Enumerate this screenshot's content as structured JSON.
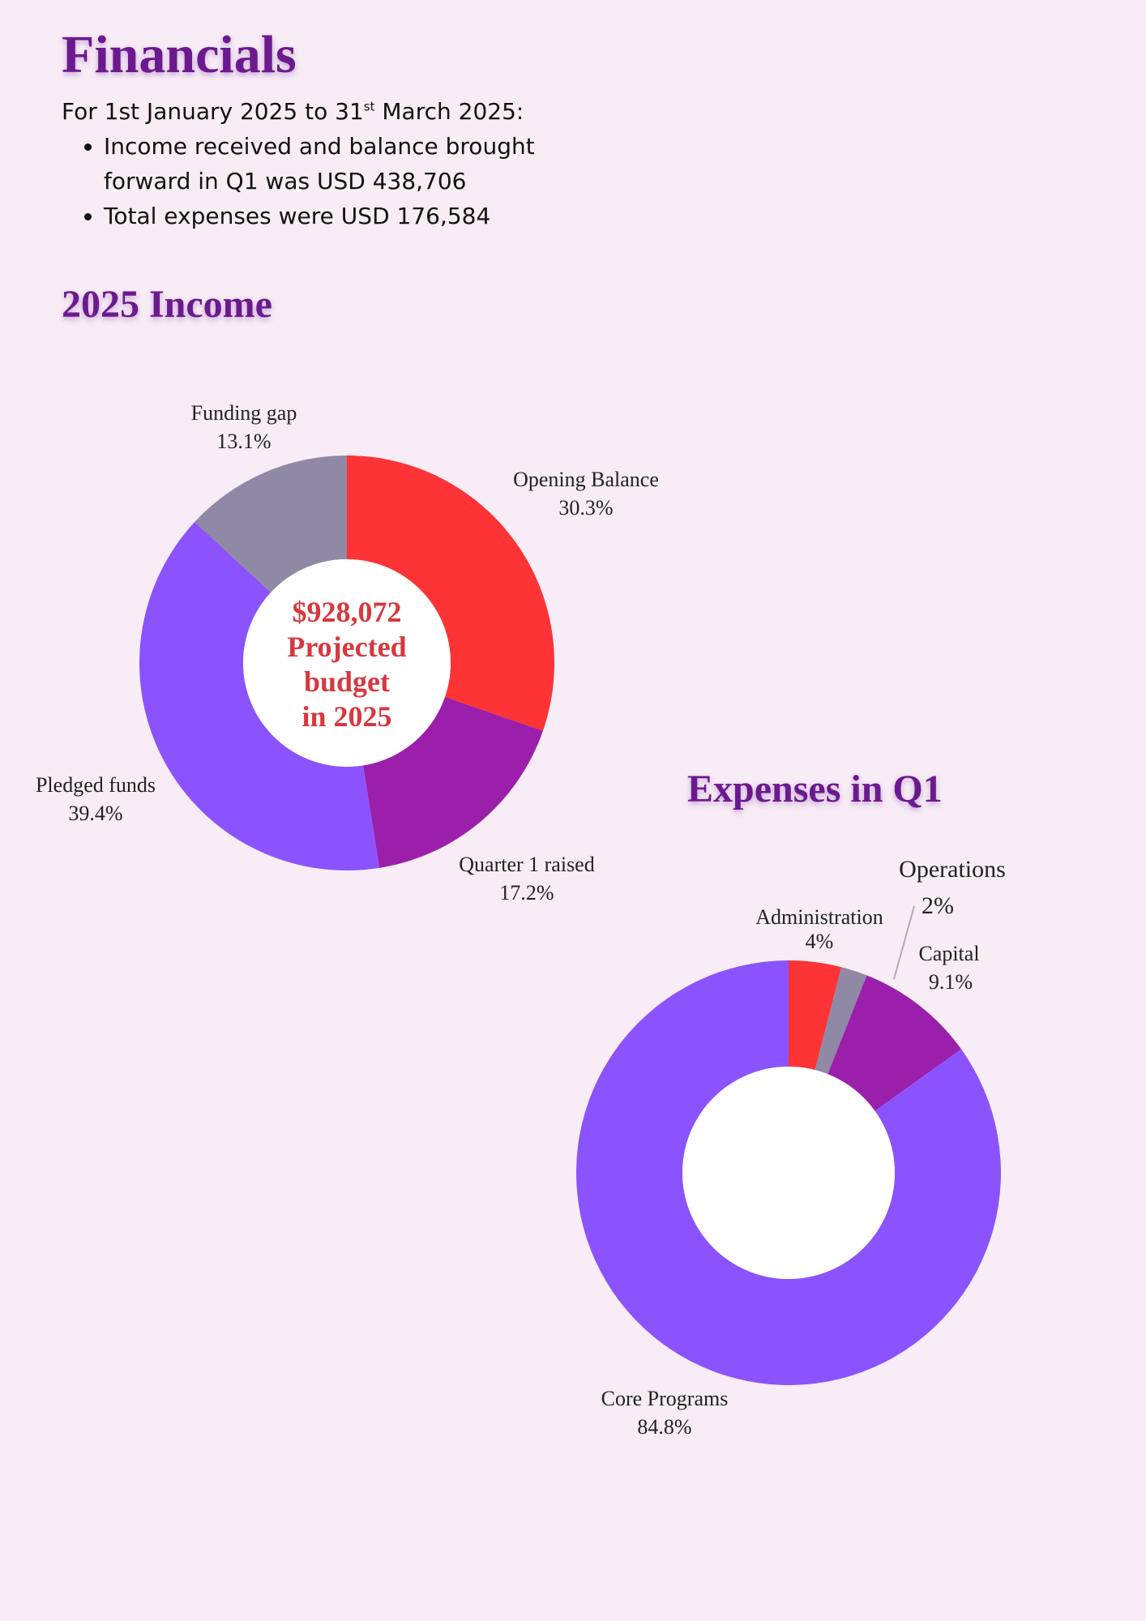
{
  "heading": "Financials",
  "intro": {
    "period_prefix": "For 1st January 2025 to 31",
    "period_sup": "st",
    "period_suffix": " March 2025:",
    "bullets": [
      "Income received and balance brought forward in Q1 was USD 438,706",
      "Total expenses were USD 176,584"
    ]
  },
  "colors": {
    "red": "#fd3335",
    "grey": "#8f89a5",
    "magenta": "#9b1faa",
    "violet": "#8b53fd",
    "title": "#6a1a8e",
    "center_text": "#d6383f"
  },
  "chart_data": [
    {
      "type": "pie",
      "title": "2025 Income",
      "center_text": [
        "$928,072",
        "Projected",
        "budget",
        "in 2025"
      ],
      "slices": [
        {
          "label": "Opening Balance",
          "value": 30.3,
          "display": "30.3%",
          "color": "#fd3335"
        },
        {
          "label": "Quarter 1 raised",
          "value": 17.2,
          "display": "17.2%",
          "color": "#9b1faa"
        },
        {
          "label": "Pledged funds",
          "value": 39.4,
          "display": "39.4%",
          "color": "#8b53fd"
        },
        {
          "label": "Funding gap",
          "value": 13.1,
          "display": "13.1%",
          "color": "#8f89a5"
        }
      ]
    },
    {
      "type": "pie",
      "title": "Expenses in Q1",
      "slices": [
        {
          "label": "Administration",
          "value": 4,
          "display": "4%",
          "color": "#fd3335"
        },
        {
          "label": "Operations",
          "value": 2,
          "display": "2%",
          "color": "#8f89a5"
        },
        {
          "label": "Capital",
          "value": 9.1,
          "display": "9.1%",
          "color": "#9b1faa"
        },
        {
          "label": "Core Programs",
          "value": 84.8,
          "display": "84.8%",
          "color": "#8b53fd"
        }
      ]
    }
  ]
}
